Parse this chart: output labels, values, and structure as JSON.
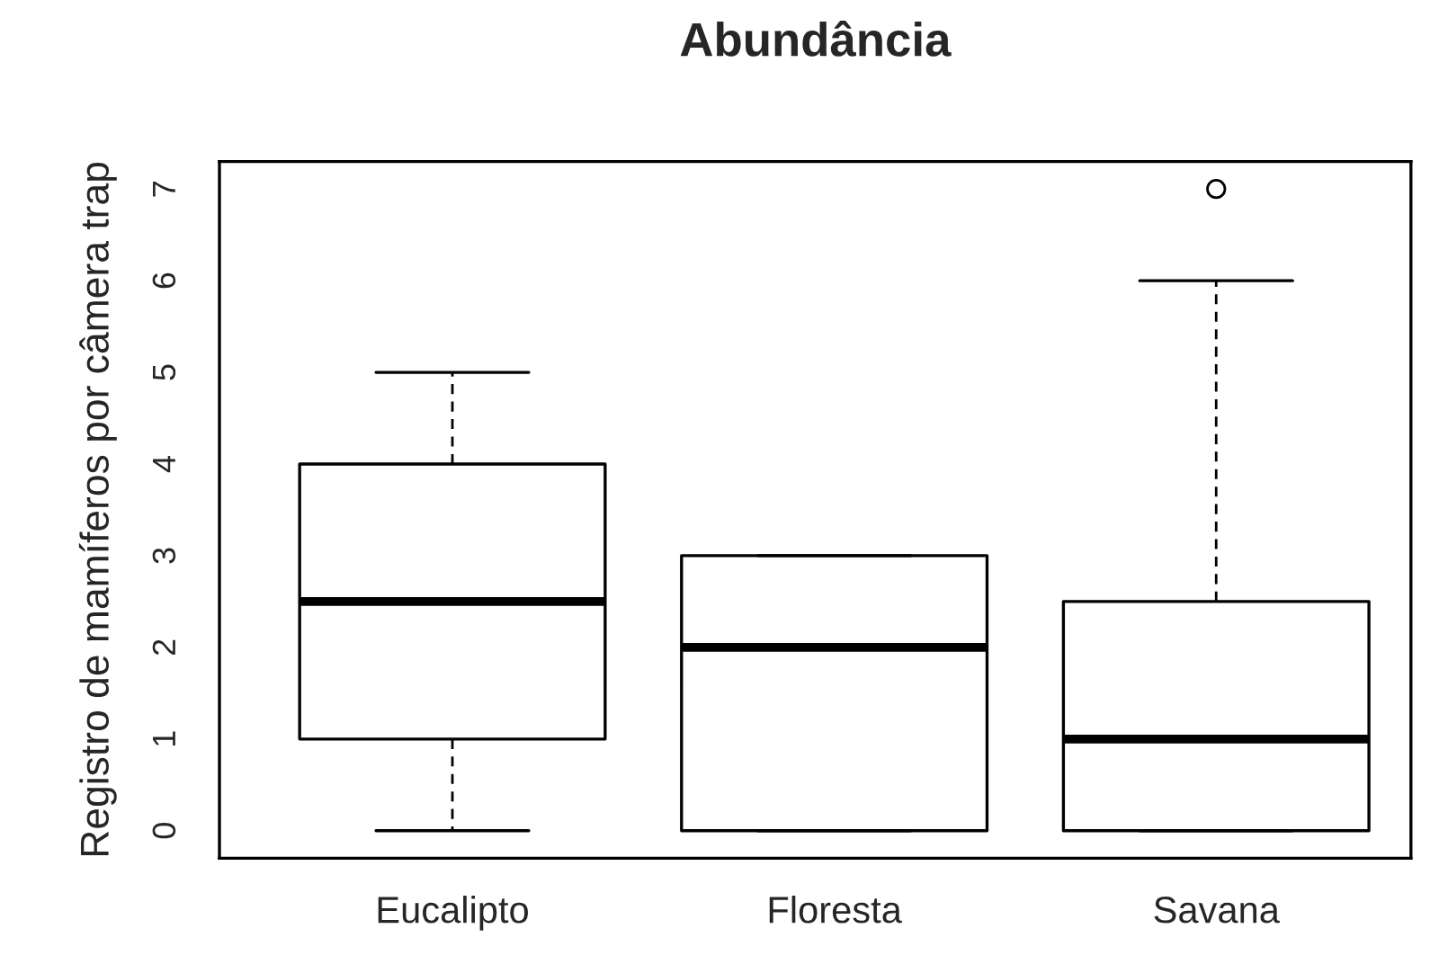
{
  "chart_data": {
    "type": "box",
    "title": "Abundância",
    "ylabel": "Registro de mamíferos por câmera trap",
    "categories": [
      "Eucalipto",
      "Floresta",
      "Savana"
    ],
    "boxes": [
      {
        "low": 0,
        "q1": 1,
        "median": 2.5,
        "q3": 4,
        "high": 5
      },
      {
        "low": 0,
        "q1": 0,
        "median": 2,
        "q3": 3,
        "high": 3
      },
      {
        "low": 0,
        "q1": 0,
        "median": 1,
        "q3": 2.5,
        "high": 6,
        "outliers": [
          7
        ]
      }
    ],
    "ylim": [
      -0.3,
      7.3
    ],
    "yticks": [
      0,
      1,
      2,
      3,
      4,
      5,
      6,
      7
    ],
    "grid": false
  }
}
